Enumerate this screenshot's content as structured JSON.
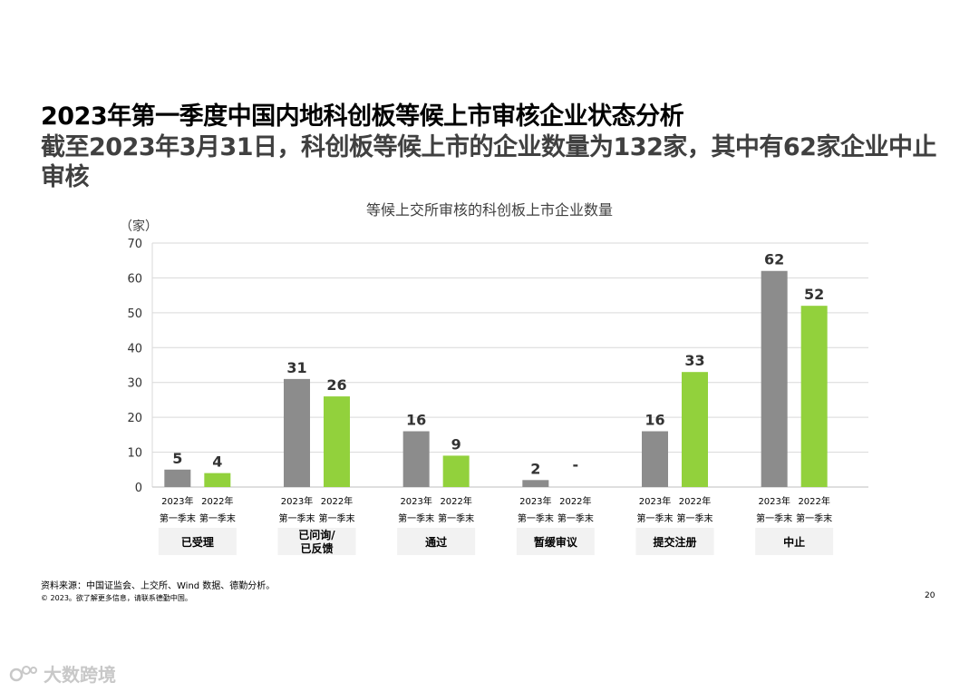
{
  "page": {
    "title": "2023年第一季度中国内地科创板等候上市审核企业状态分析",
    "subtitle": "截至2023年3月31日，科创板等候上市的企业数量为132家，其中有62家企业中止审核",
    "source": "资料来源：中国证监会、上交所、Wind 数据、德勤分析。",
    "copyright": "© 2023。欲了解更多信息，请联系德勤中国。",
    "page_number": "20",
    "watermark": "大数跨境"
  },
  "colors": {
    "series_2023": "#8c8c8c",
    "series_2022": "#92d13c",
    "grid": "#d9d9d9",
    "category_box": "#f2f2f2"
  },
  "chart_data": {
    "type": "bar",
    "title": "等候上交所审核的科创板上市企业数量",
    "ylabel": "（家）",
    "ylim": [
      0,
      70
    ],
    "yticks": [
      0,
      10,
      20,
      30,
      40,
      50,
      60,
      70
    ],
    "categories": [
      "已受理",
      "已问询/已反馈",
      "通过",
      "暂缓审议",
      "提交注册",
      "中止"
    ],
    "series": [
      {
        "name": "2023年第一季末",
        "year_label": "2023年",
        "quarter_label": "第一季末",
        "values": [
          5,
          31,
          16,
          2,
          16,
          62
        ],
        "labels": [
          "5",
          "31",
          "16",
          "2",
          "16",
          "62"
        ]
      },
      {
        "name": "2022年第一季末",
        "year_label": "2022年",
        "quarter_label": "第一季末",
        "values": [
          4,
          26,
          9,
          0,
          33,
          52
        ],
        "labels": [
          "4",
          "26",
          "9",
          "-",
          "33",
          "52"
        ]
      }
    ]
  }
}
